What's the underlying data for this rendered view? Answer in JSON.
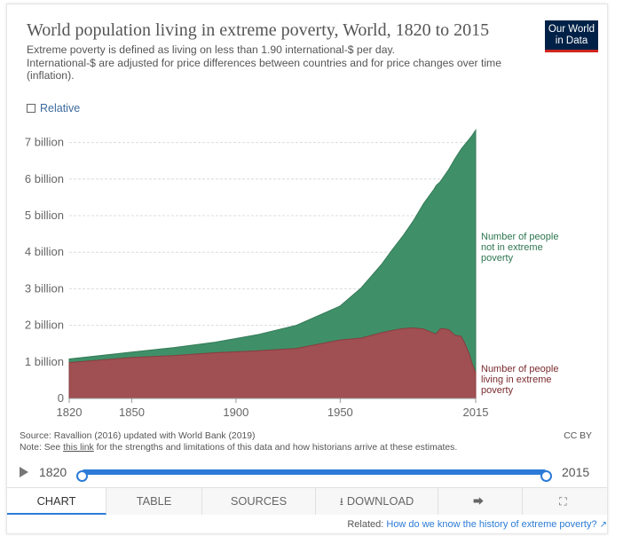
{
  "header": {
    "title": "World population living in extreme poverty, World, 1820 to 2015",
    "subtitle_line1": "Extreme poverty is defined as living on less than 1.90 international-$ per day.",
    "subtitle_line2": "International-$ are adjusted for price differences between countries and for price changes over time (inflation).",
    "logo_line1": "Our World",
    "logo_line2": "in Data",
    "relative_label": "Relative"
  },
  "chart_data": {
    "type": "area",
    "stacked": true,
    "x": [
      1820,
      1850,
      1870,
      1890,
      1910,
      1929,
      1950,
      1960,
      1970,
      1975,
      1980,
      1985,
      1990,
      1995,
      1996,
      1998,
      1999,
      2002,
      2005,
      2008,
      2010,
      2012,
      2013,
      2015
    ],
    "series": [
      {
        "name": "Number of people living in extreme poverty",
        "color": "#a05052",
        "values": [
          0.98,
          1.12,
          1.17,
          1.25,
          1.3,
          1.37,
          1.6,
          1.65,
          1.8,
          1.86,
          1.91,
          1.93,
          1.9,
          1.78,
          1.77,
          1.9,
          1.91,
          1.88,
          1.73,
          1.7,
          1.48,
          1.2,
          1.0,
          0.7
        ]
      },
      {
        "name": "Number of people not in extreme poverty",
        "color": "#3f9068",
        "values": [
          0.1,
          0.15,
          0.22,
          0.29,
          0.44,
          0.63,
          0.93,
          1.37,
          1.88,
          2.21,
          2.53,
          2.92,
          3.43,
          3.94,
          4.05,
          4.03,
          4.1,
          4.38,
          4.82,
          5.12,
          5.48,
          5.9,
          6.17,
          6.64
        ]
      }
    ],
    "series_labels": [
      [
        "Number of people",
        "not in extreme",
        "poverty"
      ],
      [
        "Number of people",
        "living in extreme",
        "poverty"
      ]
    ],
    "ylim": [
      0,
      7500000000
    ],
    "yticks": [
      {
        "value": 0,
        "label": "0"
      },
      {
        "value": 1,
        "label": "1 billion"
      },
      {
        "value": 2,
        "label": "2 billion"
      },
      {
        "value": 3,
        "label": "3 billion"
      },
      {
        "value": 4,
        "label": "4 billion"
      },
      {
        "value": 5,
        "label": "5 billion"
      },
      {
        "value": 6,
        "label": "6 billion"
      },
      {
        "value": 7,
        "label": "7 billion"
      }
    ],
    "xticks": [
      {
        "value": 1820,
        "label": "1820"
      },
      {
        "value": 1850,
        "label": "1850"
      },
      {
        "value": 1900,
        "label": "1900"
      },
      {
        "value": 1950,
        "label": "1950"
      },
      {
        "value": 2015,
        "label": "2015"
      }
    ],
    "grid": "horizontal-dotted"
  },
  "footer": {
    "source": "Source: Ravallion (2016) updated with World Bank (2019)",
    "note_prefix": "Note: See ",
    "note_link": "this link",
    "note_suffix": " for the strengths and limitations of this data and how historians arrive at these estimates.",
    "license": "CC BY"
  },
  "timeline": {
    "start_year": "1820",
    "end_year": "2015",
    "start_fraction": 0,
    "end_fraction": 1
  },
  "tabs": [
    {
      "label": "CHART",
      "active": true
    },
    {
      "label": "TABLE",
      "active": false
    },
    {
      "label": "SOURCES",
      "active": false
    },
    {
      "label": "DOWNLOAD",
      "active": false,
      "icon": "download-icon"
    },
    {
      "label": "",
      "active": false,
      "icon": "share-icon"
    },
    {
      "label": "",
      "active": false,
      "icon": "fullscreen-icon"
    }
  ],
  "related": {
    "prefix": "Related: ",
    "link": "How do we know the history of extreme poverty?",
    "icon": "external-link-icon"
  }
}
